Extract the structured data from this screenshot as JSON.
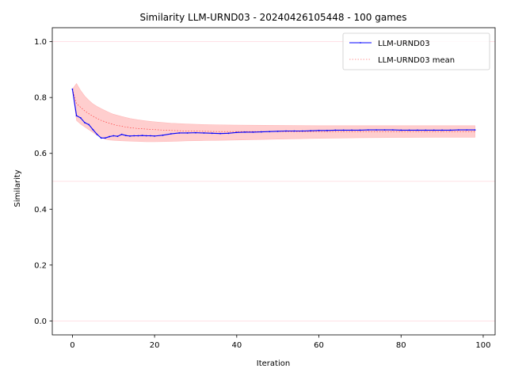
{
  "chart_data": {
    "type": "line",
    "title": "Similarity LLM-URND03 - 20240426105448 - 100 games",
    "xlabel": "Iteration",
    "ylabel": "Similarity",
    "xlim": [
      -4.9,
      102.9
    ],
    "ylim": [
      -0.05,
      1.05
    ],
    "x_ticks": [
      0,
      20,
      40,
      60,
      80,
      100
    ],
    "y_ticks": [
      0.0,
      0.2,
      0.4,
      0.6,
      0.8,
      1.0
    ],
    "x_tick_labels": [
      "0",
      "20",
      "40",
      "60",
      "80",
      "100"
    ],
    "y_tick_labels": [
      "0.0",
      "0.2",
      "0.4",
      "0.6",
      "0.8",
      "1.0"
    ],
    "reference_lines": [
      0.0,
      0.5,
      1.0
    ],
    "grid": false,
    "legend_position": "top-right",
    "colors": {
      "series": "#0000ff",
      "mean": "#ff0000",
      "band": "#ffcccc",
      "reference": "#ffd6de"
    },
    "series": [
      {
        "name": "LLM-URND03",
        "x": [
          0,
          1,
          2,
          3,
          4,
          5,
          6,
          7,
          8,
          9,
          10,
          11,
          12,
          13,
          14,
          15,
          16,
          17,
          18,
          19,
          20,
          22,
          24,
          26,
          28,
          30,
          32,
          34,
          36,
          38,
          40,
          42,
          44,
          46,
          48,
          50,
          52,
          54,
          56,
          58,
          60,
          62,
          64,
          66,
          68,
          70,
          72,
          74,
          76,
          78,
          80,
          82,
          84,
          86,
          88,
          90,
          92,
          94,
          96,
          98
        ],
        "values": [
          0.83,
          0.735,
          0.727,
          0.71,
          0.703,
          0.685,
          0.668,
          0.655,
          0.655,
          0.66,
          0.663,
          0.661,
          0.668,
          0.664,
          0.662,
          0.663,
          0.663,
          0.664,
          0.663,
          0.663,
          0.662,
          0.665,
          0.67,
          0.673,
          0.673,
          0.674,
          0.673,
          0.672,
          0.671,
          0.672,
          0.675,
          0.676,
          0.676,
          0.677,
          0.678,
          0.679,
          0.68,
          0.68,
          0.68,
          0.681,
          0.682,
          0.682,
          0.683,
          0.683,
          0.683,
          0.683,
          0.684,
          0.684,
          0.684,
          0.684,
          0.683,
          0.683,
          0.683,
          0.683,
          0.683,
          0.683,
          0.683,
          0.684,
          0.684,
          0.684
        ]
      },
      {
        "name": "LLM-URND03 mean",
        "x": [
          0,
          1,
          2,
          3,
          4,
          5,
          6,
          7,
          8,
          9,
          10,
          12,
          14,
          16,
          18,
          20,
          24,
          28,
          32,
          36,
          40,
          50,
          60,
          70,
          80,
          90,
          98
        ],
        "values": [
          0.83,
          0.778,
          0.765,
          0.752,
          0.742,
          0.733,
          0.725,
          0.718,
          0.713,
          0.708,
          0.703,
          0.697,
          0.692,
          0.689,
          0.687,
          0.685,
          0.682,
          0.68,
          0.679,
          0.678,
          0.678,
          0.678,
          0.678,
          0.678,
          0.678,
          0.678,
          0.678
        ],
        "upper": [
          0.83,
          0.85,
          0.825,
          0.805,
          0.79,
          0.777,
          0.768,
          0.76,
          0.753,
          0.746,
          0.74,
          0.732,
          0.725,
          0.72,
          0.716,
          0.713,
          0.708,
          0.705,
          0.703,
          0.702,
          0.701,
          0.7,
          0.699,
          0.699,
          0.699,
          0.699,
          0.699
        ],
        "lower": [
          0.83,
          0.718,
          0.705,
          0.695,
          0.685,
          0.675,
          0.665,
          0.657,
          0.651,
          0.648,
          0.647,
          0.645,
          0.644,
          0.643,
          0.642,
          0.642,
          0.643,
          0.645,
          0.646,
          0.647,
          0.648,
          0.651,
          0.654,
          0.656,
          0.657,
          0.658,
          0.658
        ]
      }
    ]
  }
}
